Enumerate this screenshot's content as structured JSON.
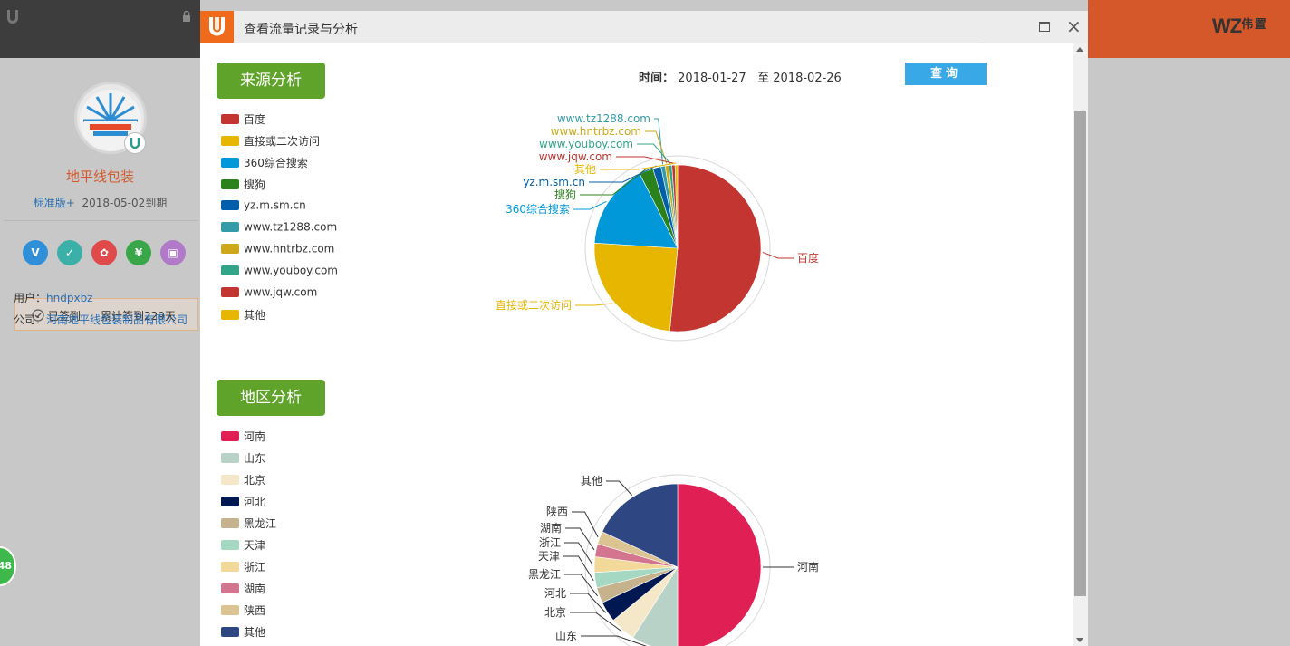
{
  "topbar": {
    "brand": "WZ",
    "brand_small": "伟 置"
  },
  "left_panel": {
    "company_name": "地平线包装",
    "edition_link": "标准版+",
    "expiry": "2018-05-02到期",
    "sign_status": "已签到",
    "sign_total": "累计签到229天",
    "user_label": "用户：",
    "user_value": "hndpxbz",
    "company_label": "公司：",
    "company_value": "河南地平线包装制品有限公司",
    "float_count": "48",
    "icons": [
      {
        "name": "v-icon",
        "glyph": "V",
        "color": "#2f8fd8"
      },
      {
        "name": "shield-icon",
        "glyph": "✓",
        "color": "#3bb0a8"
      },
      {
        "name": "award-icon",
        "glyph": "✿",
        "color": "#e04a4a"
      },
      {
        "name": "yen-icon",
        "glyph": "¥",
        "color": "#3aa64a"
      },
      {
        "name": "image-icon",
        "glyph": "▣",
        "color": "#b07ac8"
      }
    ]
  },
  "modal": {
    "title": "查看流量记录与分析",
    "time_label": "时间：",
    "date_from": "2018-01-27",
    "date_sep": "至",
    "date_to": "2018-02-26",
    "query_label": "查询",
    "source_section": "来源分析",
    "region_section": "地区分析"
  },
  "chart_data": [
    {
      "type": "pie",
      "categories": [
        "百度",
        "直接或二次访问",
        "360综合搜索",
        "搜狗",
        "yz.m.sm.cn",
        "www.tz1288.com",
        "www.hntrbz.com",
        "www.youboy.com",
        "www.jqw.com",
        "其他"
      ],
      "values": [
        51.5,
        24.5,
        16.5,
        2.7,
        1.6,
        0.8,
        0.7,
        0.6,
        0.6,
        0.5
      ],
      "colors": [
        "#c23531",
        "#e6b600",
        "#0098d9",
        "#2b821d",
        "#005eaa",
        "#339ca8",
        "#cda819",
        "#32a487",
        "#c23531",
        "#e6b600"
      ],
      "label_colors": [
        "#c23531",
        "#e6b600",
        "#0098d9",
        "#2b821d",
        "#005eaa",
        "#339ca8",
        "#cda819",
        "#32a487",
        "#c23531",
        "#e6b600"
      ]
    },
    {
      "type": "pie",
      "categories": [
        "河南",
        "山东",
        "北京",
        "河北",
        "黑龙江",
        "天津",
        "浙江",
        "湖南",
        "陕西",
        "其他"
      ],
      "values": [
        50,
        9,
        5,
        4,
        3,
        3,
        3,
        2.5,
        2.5,
        18
      ],
      "colors": [
        "#e01f54",
        "#b8d2c7",
        "#f5e8c8",
        "#001852",
        "#c6b38e",
        "#a4d8c2",
        "#f3d999",
        "#d3758f",
        "#dcc392",
        "#2e4783"
      ],
      "label_colors": [
        "#333333",
        "#333333",
        "#333333",
        "#333333",
        "#333333",
        "#333333",
        "#333333",
        "#333333",
        "#333333",
        "#333333"
      ]
    }
  ]
}
